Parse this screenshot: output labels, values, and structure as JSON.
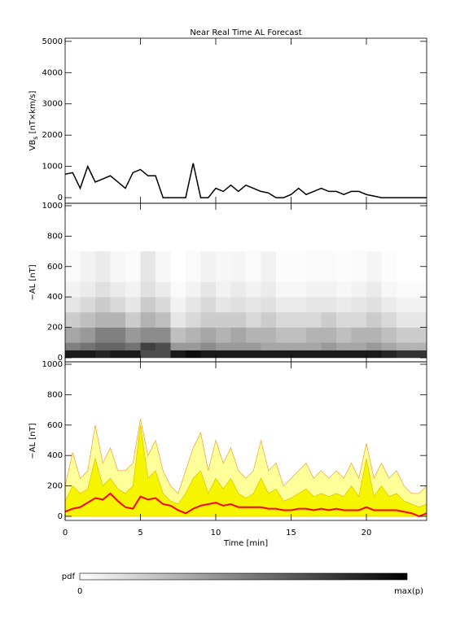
{
  "chart_data": [
    {
      "type": "line",
      "title": "Near Real Time AL Forecast",
      "ylabel": {
        "main": "VB",
        "sub": "s",
        "unit": " [nT×km/s]"
      },
      "x": [
        0,
        0.5,
        1,
        1.5,
        2,
        2.5,
        3,
        3.5,
        4,
        4.5,
        5,
        5.5,
        6,
        6.5,
        7,
        7.5,
        8,
        8.5,
        9,
        9.5,
        10,
        10.5,
        11,
        11.5,
        12,
        12.5,
        13,
        13.5,
        14,
        14.5,
        15,
        15.5,
        16,
        16.5,
        17,
        17.5,
        18,
        18.5,
        19,
        19.5,
        20,
        20.5,
        21,
        21.5,
        22,
        22.5,
        23,
        23.5,
        24
      ],
      "values": [
        750,
        800,
        300,
        1000,
        500,
        600,
        700,
        500,
        300,
        800,
        900,
        700,
        700,
        0,
        0,
        0,
        0,
        1100,
        0,
        0,
        300,
        200,
        400,
        200,
        400,
        300,
        200,
        150,
        0,
        0,
        100,
        300,
        100,
        200,
        300,
        200,
        200,
        100,
        200,
        200,
        100,
        50,
        0,
        0,
        0,
        0,
        0,
        0,
        0
      ],
      "color": "#000000",
      "xlim": [
        0,
        24
      ],
      "xticks": [
        0,
        5,
        10,
        15,
        20
      ],
      "ylim": [
        -180,
        5100
      ],
      "yticks": [
        0,
        1000,
        2000,
        3000,
        4000,
        5000
      ]
    },
    {
      "type": "heatmap",
      "ylabel": "−AL [nT]",
      "x_edges": [
        0,
        1,
        2,
        3,
        4,
        5,
        6,
        7,
        8,
        9,
        10,
        11,
        12,
        13,
        14,
        15,
        16,
        17,
        18,
        19,
        20,
        21,
        22,
        23,
        24
      ],
      "y_edges": [
        0,
        50,
        100,
        200,
        300,
        400,
        500,
        700
      ],
      "z": [
        [
          0.9,
          0.9,
          0.85,
          0.9,
          0.9,
          0.7,
          0.7,
          0.9,
          0.95,
          0.9,
          0.9,
          0.9,
          0.9,
          0.9,
          0.9,
          0.9,
          0.9,
          0.9,
          0.9,
          0.9,
          0.9,
          0.85,
          0.8,
          0.8
        ],
        [
          0.5,
          0.55,
          0.6,
          0.6,
          0.55,
          0.75,
          0.7,
          0.4,
          0.4,
          0.45,
          0.4,
          0.4,
          0.4,
          0.35,
          0.35,
          0.35,
          0.35,
          0.4,
          0.35,
          0.35,
          0.4,
          0.35,
          0.3,
          0.3
        ],
        [
          0.35,
          0.4,
          0.5,
          0.5,
          0.4,
          0.45,
          0.45,
          0.25,
          0.3,
          0.35,
          0.3,
          0.35,
          0.3,
          0.3,
          0.25,
          0.25,
          0.3,
          0.3,
          0.25,
          0.3,
          0.3,
          0.25,
          0.2,
          0.2
        ],
        [
          0.2,
          0.25,
          0.3,
          0.3,
          0.2,
          0.3,
          0.25,
          0.1,
          0.15,
          0.2,
          0.2,
          0.2,
          0.15,
          0.2,
          0.15,
          0.15,
          0.15,
          0.2,
          0.15,
          0.15,
          0.2,
          0.15,
          0.1,
          0.1
        ],
        [
          0.1,
          0.15,
          0.2,
          0.15,
          0.1,
          0.2,
          0.15,
          0.05,
          0.1,
          0.15,
          0.1,
          0.12,
          0.1,
          0.12,
          0.08,
          0.08,
          0.1,
          0.1,
          0.08,
          0.1,
          0.12,
          0.08,
          0.05,
          0.05
        ],
        [
          0.05,
          0.08,
          0.12,
          0.08,
          0.05,
          0.12,
          0.08,
          0.02,
          0.05,
          0.1,
          0.05,
          0.08,
          0.05,
          0.08,
          0.03,
          0.03,
          0.05,
          0.05,
          0.03,
          0.05,
          0.08,
          0.03,
          0.02,
          0.02
        ],
        [
          0.02,
          0.05,
          0.08,
          0.03,
          0.02,
          0.1,
          0.03,
          0,
          0.02,
          0.05,
          0.03,
          0.04,
          0.02,
          0.05,
          0.01,
          0.01,
          0.02,
          0.02,
          0.01,
          0.02,
          0.04,
          0.01,
          0,
          0
        ]
      ],
      "colormap": [
        "#ffffff",
        "#000000"
      ],
      "colorbar": {
        "label": "pdf",
        "min_label": "0",
        "max_label": "max(p)"
      },
      "xlim": [
        0,
        24
      ],
      "xticks": [
        0,
        5,
        10,
        15,
        20
      ],
      "ylim": [
        -27,
        1016
      ],
      "yticks": [
        0,
        200,
        400,
        600,
        800,
        1000
      ]
    },
    {
      "type": "area",
      "ylabel": "−AL [nT]",
      "xlabel": "Time [min]",
      "x": [
        0,
        0.5,
        1,
        1.5,
        2,
        2.5,
        3,
        3.5,
        4,
        4.5,
        5,
        5.5,
        6,
        6.5,
        7,
        7.5,
        8,
        8.5,
        9,
        9.5,
        10,
        10.5,
        11,
        11.5,
        12,
        12.5,
        13,
        13.5,
        14,
        14.5,
        15,
        15.5,
        16,
        16.5,
        17,
        17.5,
        18,
        18.5,
        19,
        19.5,
        20,
        20.5,
        21,
        21.5,
        22,
        22.5,
        23,
        23.5,
        24
      ],
      "series": [
        {
          "color": "#ffff99",
          "edge": "#f0a030",
          "values": [
            200,
            420,
            250,
            300,
            600,
            350,
            450,
            300,
            300,
            350,
            640,
            400,
            500,
            300,
            200,
            150,
            300,
            450,
            550,
            300,
            500,
            350,
            450,
            300,
            250,
            300,
            500,
            300,
            350,
            200,
            250,
            300,
            350,
            250,
            300,
            250,
            300,
            250,
            350,
            250,
            480,
            250,
            350,
            250,
            300,
            200,
            150,
            150,
            200
          ]
        },
        {
          "color": "#f5f500",
          "edge": "#e0c000",
          "values": [
            100,
            200,
            150,
            180,
            380,
            200,
            250,
            180,
            150,
            200,
            600,
            250,
            300,
            150,
            100,
            80,
            150,
            250,
            300,
            150,
            250,
            180,
            250,
            150,
            120,
            150,
            250,
            150,
            180,
            100,
            120,
            150,
            180,
            130,
            150,
            130,
            150,
            130,
            200,
            130,
            380,
            130,
            200,
            130,
            150,
            100,
            80,
            60,
            80
          ]
        },
        {
          "color": "#ff0000",
          "values": [
            30,
            50,
            60,
            90,
            120,
            110,
            150,
            100,
            60,
            50,
            130,
            110,
            120,
            80,
            70,
            40,
            20,
            50,
            70,
            80,
            90,
            70,
            80,
            60,
            60,
            60,
            60,
            50,
            50,
            40,
            40,
            50,
            50,
            40,
            50,
            40,
            50,
            40,
            40,
            40,
            60,
            40,
            40,
            40,
            40,
            30,
            20,
            0,
            20
          ]
        }
      ],
      "xlim": [
        0,
        24
      ],
      "xticks": [
        0,
        5,
        10,
        15,
        20
      ],
      "ylim": [
        -27,
        1016
      ],
      "yticks": [
        0,
        200,
        400,
        600,
        800,
        1000
      ]
    }
  ]
}
